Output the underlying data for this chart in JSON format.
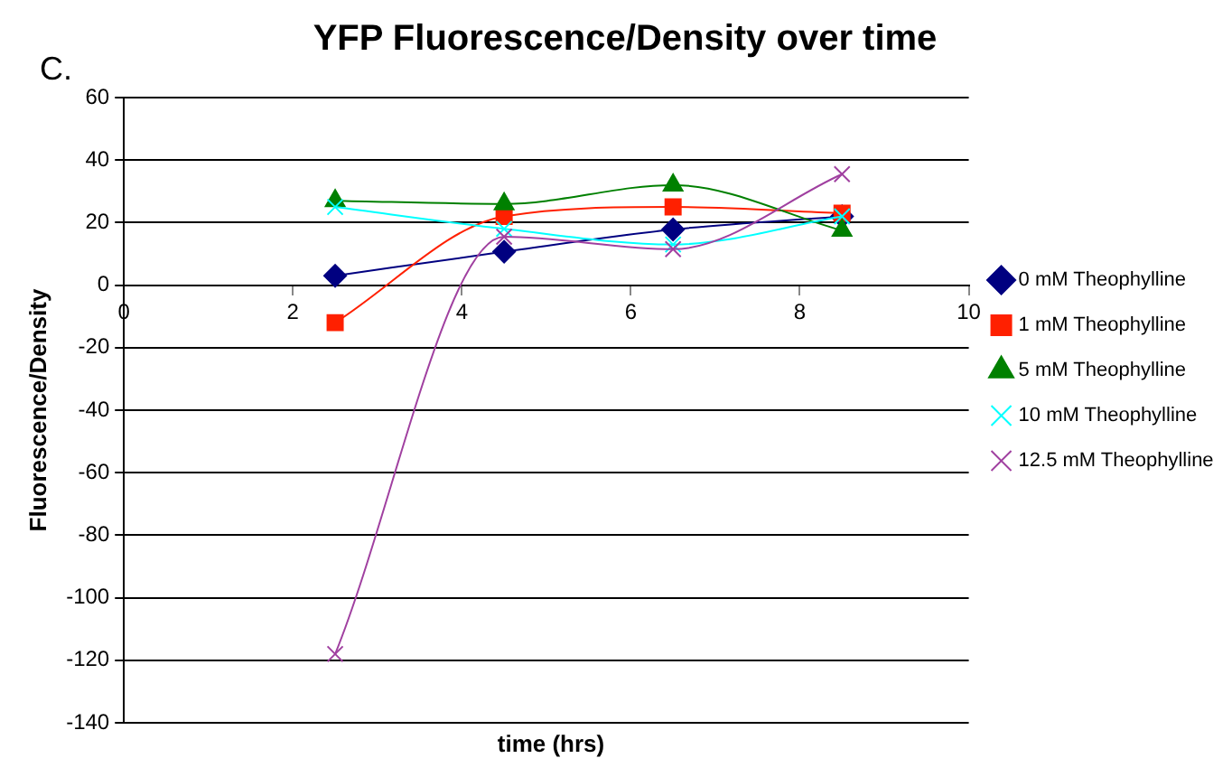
{
  "chart_data": {
    "type": "line",
    "title": "YFP Fluorescence/Density over time",
    "xlabel": "time (hrs)",
    "ylabel": "Fluorescence/Density",
    "annotations": [
      "C."
    ],
    "x": [
      2.5,
      4.5,
      6.5,
      8.5
    ],
    "series": [
      {
        "name": "0 mM Theophylline",
        "color": "#000080",
        "marker": "diamond",
        "values": [
          3,
          10.7,
          17.8,
          22
        ]
      },
      {
        "name": "1 mM Theophylline",
        "color": "#ff2000",
        "marker": "square",
        "values": [
          -12,
          22,
          25,
          23
        ]
      },
      {
        "name": "5 mM Theophylline",
        "color": "#008000",
        "marker": "triangle",
        "values": [
          27,
          26,
          32,
          17.5
        ]
      },
      {
        "name": "10 mM Theophylline",
        "color": "#00ffff",
        "marker": "cross",
        "values": [
          25,
          18,
          13,
          22
        ]
      },
      {
        "name": "12.5 mM Theophylline",
        "color": "#a040a0",
        "marker": "cross",
        "values": [
          -118,
          15.5,
          11.5,
          35.5
        ]
      }
    ],
    "xlim": [
      0,
      10
    ],
    "xticks": [
      0,
      2,
      4,
      6,
      8,
      10
    ],
    "ylim": [
      -140,
      60
    ],
    "yticks": [
      -140,
      -120,
      -100,
      -80,
      -60,
      -40,
      -20,
      0,
      20,
      40,
      60
    ],
    "grid": "y",
    "legend": "right"
  }
}
